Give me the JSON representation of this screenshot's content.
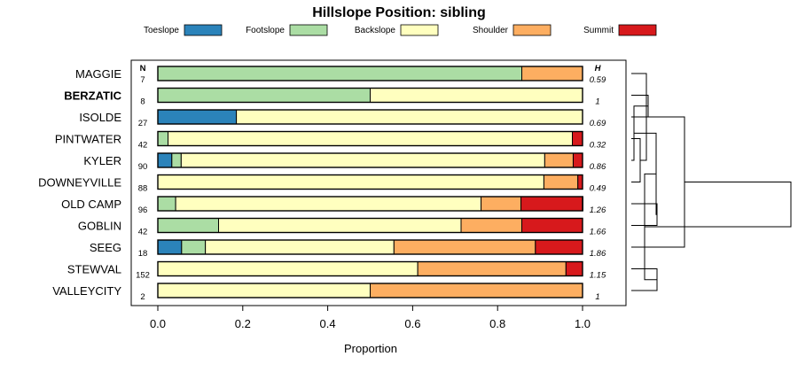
{
  "chart_data": {
    "type": "bar",
    "orientation": "horizontal-stacked",
    "title": "Hillslope Position: sibling",
    "xlabel": "Proportion",
    "ylabel": "",
    "xlim": [
      0,
      1
    ],
    "x_ticks": [
      "0.0",
      "0.2",
      "0.4",
      "0.6",
      "0.8",
      "1.0"
    ],
    "n_header": "N",
    "h_header": "H",
    "legend_placement": "top",
    "series": [
      {
        "name": "Toeslope",
        "color": "#2b83ba"
      },
      {
        "name": "Footslope",
        "color": "#abdda4"
      },
      {
        "name": "Backslope",
        "color": "#ffffbf"
      },
      {
        "name": "Shoulder",
        "color": "#fdae61"
      },
      {
        "name": "Summit",
        "color": "#d7191c"
      }
    ],
    "categories": [
      {
        "label": "MAGGIE",
        "bold": false,
        "n": "7",
        "h": "0.59",
        "values": [
          0,
          0.857,
          0,
          0.143,
          0
        ]
      },
      {
        "label": "BERZATIC",
        "bold": true,
        "n": "8",
        "h": "1",
        "values": [
          0,
          0.5,
          0.5,
          0,
          0
        ]
      },
      {
        "label": "ISOLDE",
        "bold": false,
        "n": "27",
        "h": "0.69",
        "values": [
          0.185,
          0,
          0.815,
          0,
          0
        ]
      },
      {
        "label": "PINTWATER",
        "bold": false,
        "n": "42",
        "h": "0.32",
        "values": [
          0,
          0.024,
          0.952,
          0,
          0.024
        ]
      },
      {
        "label": "KYLER",
        "bold": false,
        "n": "90",
        "h": "0.86",
        "values": [
          0.033,
          0.022,
          0.856,
          0.067,
          0.022
        ]
      },
      {
        "label": "DOWNEYVILLE",
        "bold": false,
        "n": "88",
        "h": "0.49",
        "values": [
          0,
          0,
          0.909,
          0.08,
          0.011
        ]
      },
      {
        "label": "OLD CAMP",
        "bold": false,
        "n": "96",
        "h": "1.26",
        "values": [
          0,
          0.042,
          0.719,
          0.094,
          0.146
        ]
      },
      {
        "label": "GOBLIN",
        "bold": false,
        "n": "42",
        "h": "1.66",
        "values": [
          0,
          0.143,
          0.571,
          0.143,
          0.143
        ]
      },
      {
        "label": "SEEG",
        "bold": false,
        "n": "18",
        "h": "1.86",
        "values": [
          0.056,
          0.056,
          0.444,
          0.333,
          0.111
        ]
      },
      {
        "label": "STEWVAL",
        "bold": false,
        "n": "152",
        "h": "1.15",
        "values": [
          0,
          0,
          0.612,
          0.349,
          0.039
        ]
      },
      {
        "label": "VALLEYCITY",
        "bold": false,
        "n": "2",
        "h": "1",
        "values": [
          0,
          0,
          0.5,
          0.5,
          0
        ]
      }
    ],
    "dendrogram_merges": [
      [
        6,
        7
      ],
      [
        1,
        2
      ],
      [
        3,
        5
      ],
      [
        4,
        12
      ],
      [
        9,
        10
      ],
      [
        11,
        14
      ],
      [
        0,
        13
      ],
      [
        15,
        16
      ],
      [
        8,
        17
      ],
      [
        18,
        19
      ]
    ]
  }
}
